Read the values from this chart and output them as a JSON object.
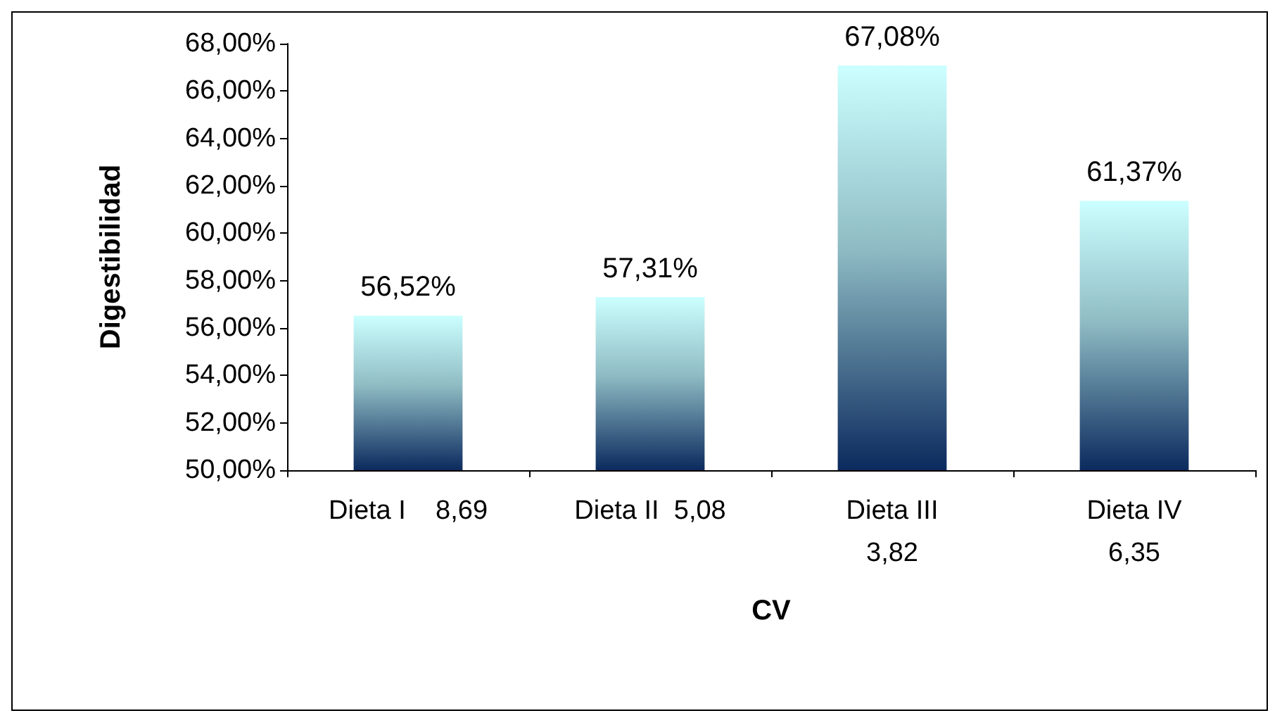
{
  "chart_data": {
    "type": "bar",
    "xlabel": "CV",
    "ylabel": "Digestibilidad",
    "categories": [
      "Dieta I    8,69",
      "Dieta II  5,08",
      "Dieta III\n3,82",
      "Dieta IV\n6,35"
    ],
    "values": [
      56.52,
      57.31,
      67.08,
      61.37
    ],
    "value_labels": [
      "56,52%",
      "57,31%",
      "67,08%",
      "61,37%"
    ],
    "color": "#ccffff",
    "ylim": [
      50,
      68
    ],
    "yticks": [
      {
        "value": 50,
        "label": "50,00%"
      },
      {
        "value": 52,
        "label": "52,00%"
      },
      {
        "value": 54,
        "label": "54,00%"
      },
      {
        "value": 56,
        "label": "56,00%"
      },
      {
        "value": 58,
        "label": "58,00%"
      },
      {
        "value": 60,
        "label": "60,00%"
      },
      {
        "value": 62,
        "label": "62,00%"
      },
      {
        "value": 64,
        "label": "64,00%"
      },
      {
        "value": 66,
        "label": "66,00%"
      },
      {
        "value": 68,
        "label": "68,00%"
      }
    ],
    "grid": false
  }
}
